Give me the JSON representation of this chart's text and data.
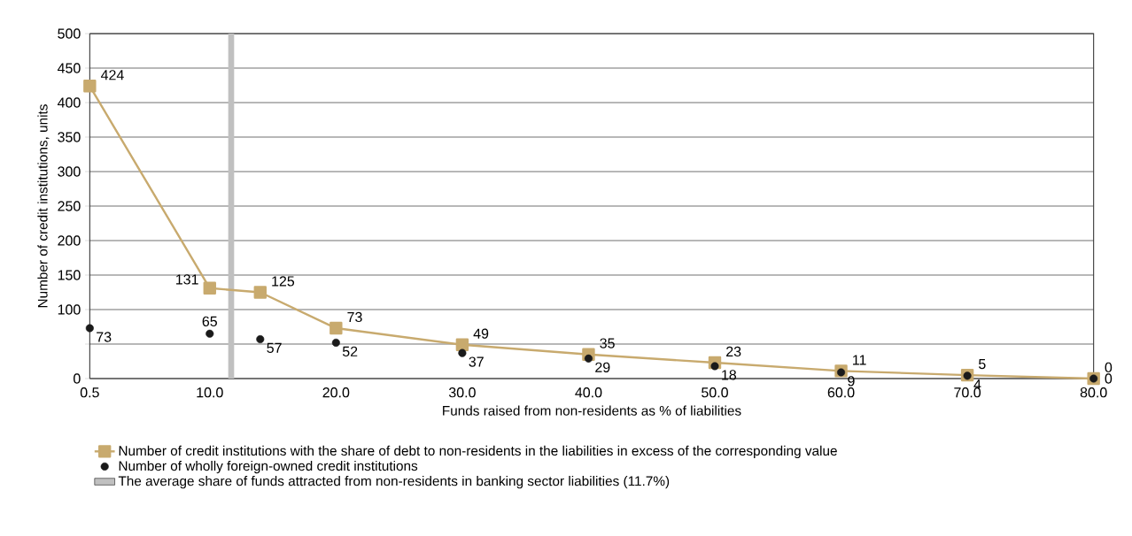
{
  "chart_data": {
    "type": "line",
    "xlabel": "Funds raised from non-residents as % of liabilities",
    "ylabel": "Number of credit institutions, units",
    "series": [
      {
        "name": "Number of credit institutions with the share of debt to non-residents in the liabilities in excess of the corresponding value",
        "marker": "square",
        "line_style": "solid",
        "color": "#c8aa6e",
        "x": [
          0.5,
          10,
          14,
          20,
          30,
          40,
          50,
          60,
          70,
          80
        ],
        "values": [
          424,
          131,
          125,
          73,
          49,
          35,
          23,
          11,
          5,
          0
        ]
      },
      {
        "name": "Number of wholly foreign-owned credit institutions",
        "type": "scatter",
        "marker": "circle",
        "color": "#1a1a1a",
        "x": [
          0.5,
          10,
          14,
          20,
          30,
          40,
          50,
          60,
          70,
          80
        ],
        "values": [
          73,
          65,
          57,
          52,
          37,
          29,
          18,
          9,
          4,
          0
        ]
      }
    ],
    "data_labels": true,
    "ref_lines": [
      {
        "axis": "x",
        "value": 11.7,
        "label": "The average share of funds attracted from non-residents in banking sector liabilities (11.7%)",
        "color": "#c0c0c0"
      }
    ],
    "xlim": [
      0.5,
      80
    ],
    "xticks": [
      0.5,
      {
        "value": 10,
        "label": "10.0"
      },
      {
        "value": 20,
        "label": "20.0"
      },
      {
        "value": 30,
        "label": "30.0"
      },
      {
        "value": 40,
        "label": "40.0"
      },
      {
        "value": 50,
        "label": "50.0"
      },
      {
        "value": 60,
        "label": "60.0"
      },
      {
        "value": 70,
        "label": "70.0"
      },
      {
        "value": 80,
        "label": "80.0"
      }
    ],
    "ylim": [
      0,
      500
    ],
    "yticks": [
      0,
      {
        "value": 50,
        "label": null
      },
      100,
      150,
      200,
      250,
      300,
      350,
      400,
      450,
      500
    ],
    "grid": "y",
    "legend": "bottom"
  }
}
